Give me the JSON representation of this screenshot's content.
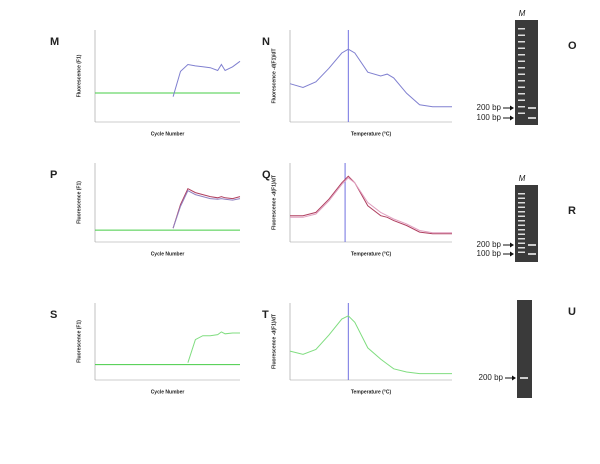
{
  "chart_data": [
    {
      "type": "line",
      "label": "M",
      "xlabel": "Cycle Number",
      "ylabel": "Fluorescence (F1)",
      "x": [
        22,
        24,
        26,
        28,
        30,
        32,
        34,
        35,
        36,
        38,
        40
      ],
      "xlim": [
        1,
        40
      ],
      "ylim": [
        0,
        2
      ],
      "threshold": 0.63,
      "threshold_color": "#44cc44",
      "series": [
        {
          "color": "#8080d0",
          "values": [
            0.55,
            1.1,
            1.25,
            1.22,
            1.2,
            1.18,
            1.12,
            1.25,
            1.12,
            1.2,
            1.32
          ]
        }
      ]
    },
    {
      "type": "line",
      "label": "N",
      "xlabel": "Temperature (°C)",
      "ylabel": "Fluorescence -d(F1)/dT",
      "x": [
        70,
        72,
        74,
        76,
        78,
        79,
        80,
        82,
        84,
        85,
        86,
        88,
        90,
        92,
        95
      ],
      "xlim": [
        70,
        95
      ],
      "ylim": [
        0,
        2.4
      ],
      "marker_x": 79,
      "marker_color": "#7070e0",
      "series": [
        {
          "color": "#8080d0",
          "values": [
            1.0,
            0.9,
            1.05,
            1.4,
            1.8,
            1.9,
            1.8,
            1.3,
            1.2,
            1.25,
            1.15,
            0.75,
            0.45,
            0.4,
            0.4
          ]
        }
      ]
    },
    {
      "type": "line",
      "label": "P",
      "xlabel": "Cycle Number",
      "ylabel": "Fluorescence (F1)",
      "x": [
        22,
        24,
        26,
        28,
        30,
        32,
        34,
        35,
        36,
        38,
        40
      ],
      "xlim": [
        1,
        40
      ],
      "ylim": [
        0,
        2
      ],
      "threshold": 0.3,
      "threshold_color": "#44cc44",
      "series": [
        {
          "color": "#b04060",
          "values": [
            0.35,
            0.95,
            1.35,
            1.25,
            1.2,
            1.15,
            1.12,
            1.15,
            1.12,
            1.1,
            1.15
          ]
        },
        {
          "color": "#9080c0",
          "values": [
            0.35,
            0.9,
            1.3,
            1.2,
            1.15,
            1.1,
            1.08,
            1.1,
            1.08,
            1.06,
            1.1
          ]
        }
      ]
    },
    {
      "type": "line",
      "label": "Q",
      "xlabel": "Temperature (°C)",
      "ylabel": "Fluorescence -d(F1)/dT",
      "x": [
        70,
        72,
        74,
        76,
        78,
        79,
        80,
        82,
        84,
        85,
        86,
        88,
        90,
        92,
        95
      ],
      "xlim": [
        70,
        95
      ],
      "ylim": [
        0,
        2.4
      ],
      "marker_x": 78.5,
      "marker_color": "#7070e0",
      "series": [
        {
          "color": "#b04060",
          "values": [
            0.8,
            0.8,
            0.9,
            1.3,
            1.8,
            2.0,
            1.8,
            1.1,
            0.8,
            0.75,
            0.65,
            0.5,
            0.3,
            0.25,
            0.25
          ]
        },
        {
          "color": "#e0a0c0",
          "values": [
            0.75,
            0.75,
            0.85,
            1.25,
            1.75,
            1.95,
            1.8,
            1.2,
            0.9,
            0.8,
            0.7,
            0.55,
            0.35,
            0.28,
            0.28
          ]
        }
      ]
    },
    {
      "type": "line",
      "label": "S",
      "xlabel": "Cycle Number",
      "ylabel": "Fluorescence (F1)",
      "x": [
        22,
        24,
        26,
        28,
        30,
        32,
        34,
        35,
        36,
        38,
        40
      ],
      "xlim": [
        1,
        40
      ],
      "ylim": [
        0,
        2
      ],
      "threshold": 0.4,
      "threshold_color": "#44cc44",
      "series": [
        {
          "color": "#80dd80",
          "values": [
            null,
            null,
            0.45,
            1.05,
            1.15,
            1.15,
            1.18,
            1.25,
            1.2,
            1.22,
            1.22
          ]
        }
      ]
    },
    {
      "type": "line",
      "label": "T",
      "xlabel": "Temperature (°C)",
      "ylabel": "Fluorescence -d(F1)/dT",
      "x": [
        70,
        72,
        74,
        76,
        78,
        79,
        80,
        82,
        84,
        85,
        86,
        88,
        90,
        92,
        95
      ],
      "xlim": [
        70,
        95
      ],
      "ylim": [
        0,
        2.4
      ],
      "marker_x": 79,
      "marker_color": "#7070e0",
      "series": [
        {
          "color": "#80dd80",
          "values": [
            0.9,
            0.8,
            0.95,
            1.4,
            1.9,
            2.0,
            1.8,
            1.0,
            0.65,
            0.5,
            0.35,
            0.25,
            0.2,
            0.2,
            0.2
          ]
        }
      ]
    }
  ],
  "gels": [
    {
      "label": "O",
      "lane": "M",
      "annotations": [
        "200 bp",
        "100 bp"
      ]
    },
    {
      "label": "R",
      "lane": "M",
      "annotations": [
        "200 bp",
        "100 bp"
      ]
    },
    {
      "label": "U",
      "annotations": [
        "200 bp"
      ]
    }
  ]
}
